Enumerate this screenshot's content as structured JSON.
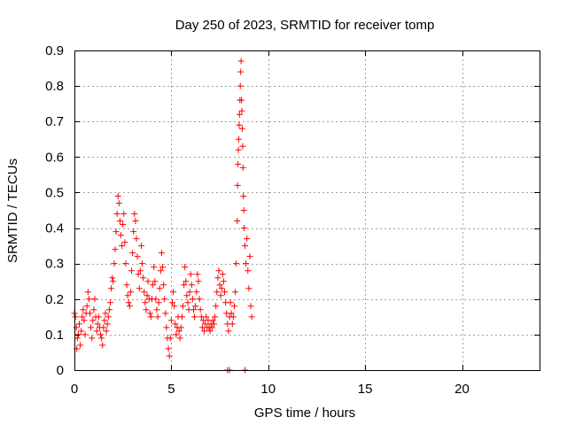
{
  "chart_data": {
    "type": "scatter",
    "title": "Day 250 of 2023, SRMTID for receiver tomp",
    "xlabel": "GPS time / hours",
    "ylabel": "SRMTID / TECUs",
    "xlim": [
      0,
      24
    ],
    "ylim": [
      0,
      0.9
    ],
    "x_ticks": [
      0,
      5,
      10,
      15,
      20
    ],
    "x_tick_labels": [
      "0",
      "5",
      "10",
      "15",
      "20"
    ],
    "y_ticks": [
      0,
      0.1,
      0.2,
      0.3,
      0.4,
      0.5,
      0.6,
      0.7,
      0.8,
      0.9
    ],
    "y_tick_labels": [
      "0",
      "0.1",
      "0.2",
      "0.3",
      "0.4",
      "0.5",
      "0.6",
      "0.7",
      "0.8",
      "0.9"
    ],
    "grid": true,
    "marker": "+",
    "color": "#ff0000",
    "series": [
      {
        "name": "SRMTID",
        "points": [
          [
            0.0,
            0.16
          ],
          [
            0.05,
            0.15
          ],
          [
            0.1,
            0.12
          ],
          [
            0.12,
            0.06
          ],
          [
            0.15,
            0.09
          ],
          [
            0.2,
            0.1
          ],
          [
            0.25,
            0.13
          ],
          [
            0.3,
            0.07
          ],
          [
            0.35,
            0.11
          ],
          [
            0.4,
            0.15
          ],
          [
            0.45,
            0.17
          ],
          [
            0.5,
            0.14
          ],
          [
            0.55,
            0.1
          ],
          [
            0.6,
            0.16
          ],
          [
            0.65,
            0.18
          ],
          [
            0.7,
            0.22
          ],
          [
            0.75,
            0.2
          ],
          [
            0.8,
            0.16
          ],
          [
            0.85,
            0.12
          ],
          [
            0.9,
            0.09
          ],
          [
            0.95,
            0.14
          ],
          [
            1.0,
            0.17
          ],
          [
            1.05,
            0.2
          ],
          [
            1.1,
            0.15
          ],
          [
            1.15,
            0.11
          ],
          [
            1.2,
            0.13
          ],
          [
            1.25,
            0.15
          ],
          [
            1.3,
            0.12
          ],
          [
            1.35,
            0.1
          ],
          [
            1.4,
            0.09
          ],
          [
            1.45,
            0.07
          ],
          [
            1.5,
            0.12
          ],
          [
            1.55,
            0.14
          ],
          [
            1.6,
            0.16
          ],
          [
            1.65,
            0.11
          ],
          [
            1.7,
            0.13
          ],
          [
            1.75,
            0.15
          ],
          [
            1.8,
            0.17
          ],
          [
            1.85,
            0.19
          ],
          [
            1.9,
            0.23
          ],
          [
            1.95,
            0.26
          ],
          [
            2.0,
            0.25
          ],
          [
            2.05,
            0.3
          ],
          [
            2.1,
            0.34
          ],
          [
            2.15,
            0.39
          ],
          [
            2.2,
            0.44
          ],
          [
            2.25,
            0.49
          ],
          [
            2.3,
            0.47
          ],
          [
            2.35,
            0.42
          ],
          [
            2.4,
            0.38
          ],
          [
            2.45,
            0.35
          ],
          [
            2.5,
            0.41
          ],
          [
            2.55,
            0.44
          ],
          [
            2.6,
            0.36
          ],
          [
            2.65,
            0.3
          ],
          [
            2.7,
            0.24
          ],
          [
            2.75,
            0.21
          ],
          [
            2.8,
            0.19
          ],
          [
            2.85,
            0.18
          ],
          [
            2.9,
            0.22
          ],
          [
            2.95,
            0.28
          ],
          [
            3.0,
            0.33
          ],
          [
            3.05,
            0.39
          ],
          [
            3.1,
            0.44
          ],
          [
            3.15,
            0.42
          ],
          [
            3.2,
            0.37
          ],
          [
            3.25,
            0.32
          ],
          [
            3.3,
            0.27
          ],
          [
            3.35,
            0.23
          ],
          [
            3.4,
            0.28
          ],
          [
            3.45,
            0.35
          ],
          [
            3.5,
            0.3
          ],
          [
            3.55,
            0.26
          ],
          [
            3.6,
            0.22
          ],
          [
            3.65,
            0.19
          ],
          [
            3.7,
            0.17
          ],
          [
            3.75,
            0.21
          ],
          [
            3.8,
            0.25
          ],
          [
            3.85,
            0.2
          ],
          [
            3.9,
            0.16
          ],
          [
            3.95,
            0.15
          ],
          [
            4.0,
            0.2
          ],
          [
            4.05,
            0.24
          ],
          [
            4.1,
            0.29
          ],
          [
            4.15,
            0.25
          ],
          [
            4.2,
            0.2
          ],
          [
            4.25,
            0.17
          ],
          [
            4.3,
            0.15
          ],
          [
            4.35,
            0.19
          ],
          [
            4.4,
            0.23
          ],
          [
            4.45,
            0.28
          ],
          [
            4.5,
            0.33
          ],
          [
            4.55,
            0.29
          ],
          [
            4.6,
            0.24
          ],
          [
            4.65,
            0.2
          ],
          [
            4.7,
            0.16
          ],
          [
            4.75,
            0.12
          ],
          [
            4.8,
            0.09
          ],
          [
            4.85,
            0.06
          ],
          [
            4.9,
            0.04
          ],
          [
            4.95,
            0.09
          ],
          [
            5.0,
            0.14
          ],
          [
            5.05,
            0.19
          ],
          [
            5.1,
            0.22
          ],
          [
            5.15,
            0.18
          ],
          [
            5.2,
            0.13
          ],
          [
            5.25,
            0.1
          ],
          [
            5.3,
            0.12
          ],
          [
            5.35,
            0.15
          ],
          [
            5.4,
            0.11
          ],
          [
            5.45,
            0.09
          ],
          [
            5.5,
            0.12
          ],
          [
            5.55,
            0.15
          ],
          [
            5.6,
            0.18
          ],
          [
            5.65,
            0.24
          ],
          [
            5.7,
            0.29
          ],
          [
            5.75,
            0.25
          ],
          [
            5.8,
            0.21
          ],
          [
            5.85,
            0.19
          ],
          [
            5.9,
            0.17
          ],
          [
            5.95,
            0.22
          ],
          [
            6.0,
            0.27
          ],
          [
            6.05,
            0.24
          ],
          [
            6.1,
            0.2
          ],
          [
            6.15,
            0.17
          ],
          [
            6.2,
            0.15
          ],
          [
            6.25,
            0.18
          ],
          [
            6.3,
            0.22
          ],
          [
            6.35,
            0.27
          ],
          [
            6.4,
            0.25
          ],
          [
            6.45,
            0.2
          ],
          [
            6.5,
            0.17
          ],
          [
            6.55,
            0.15
          ],
          [
            6.6,
            0.12
          ],
          [
            6.65,
            0.14
          ],
          [
            6.7,
            0.11
          ],
          [
            6.75,
            0.13
          ],
          [
            6.8,
            0.15
          ],
          [
            6.85,
            0.12
          ],
          [
            6.9,
            0.14
          ],
          [
            6.95,
            0.12
          ],
          [
            7.0,
            0.11
          ],
          [
            7.05,
            0.13
          ],
          [
            7.1,
            0.12
          ],
          [
            7.15,
            0.14
          ],
          [
            7.2,
            0.13
          ],
          [
            7.25,
            0.15
          ],
          [
            7.3,
            0.18
          ],
          [
            7.35,
            0.22
          ],
          [
            7.4,
            0.26
          ],
          [
            7.45,
            0.28
          ],
          [
            7.5,
            0.24
          ],
          [
            7.55,
            0.21
          ],
          [
            7.6,
            0.23
          ],
          [
            7.65,
            0.27
          ],
          [
            7.7,
            0.25
          ],
          [
            7.75,
            0.22
          ],
          [
            7.8,
            0.19
          ],
          [
            7.85,
            0.16
          ],
          [
            7.9,
            0.13
          ],
          [
            7.95,
            0.11
          ],
          [
            8.0,
            0.15
          ],
          [
            8.05,
            0.19
          ],
          [
            8.1,
            0.16
          ],
          [
            8.15,
            0.13
          ],
          [
            8.2,
            0.15
          ],
          [
            8.25,
            0.18
          ],
          [
            8.3,
            0.22
          ],
          [
            8.35,
            0.3
          ],
          [
            8.4,
            0.42
          ],
          [
            8.42,
            0.52
          ],
          [
            8.44,
            0.58
          ],
          [
            8.46,
            0.62
          ],
          [
            8.48,
            0.65
          ],
          [
            8.5,
            0.69
          ],
          [
            8.52,
            0.72
          ],
          [
            8.54,
            0.76
          ],
          [
            8.56,
            0.8
          ],
          [
            8.58,
            0.84
          ],
          [
            8.6,
            0.87
          ],
          [
            8.62,
            0.76
          ],
          [
            8.64,
            0.73
          ],
          [
            8.66,
            0.68
          ],
          [
            8.68,
            0.63
          ],
          [
            8.7,
            0.57
          ],
          [
            8.72,
            0.49
          ],
          [
            8.74,
            0.45
          ],
          [
            8.76,
            0.4
          ],
          [
            8.8,
            0.35
          ],
          [
            8.85,
            0.3
          ],
          [
            8.9,
            0.37
          ],
          [
            8.95,
            0.28
          ],
          [
            9.0,
            0.23
          ],
          [
            9.05,
            0.32
          ],
          [
            9.1,
            0.18
          ],
          [
            9.15,
            0.15
          ],
          [
            7.9,
            0.0
          ],
          [
            8.0,
            0.0
          ],
          [
            8.8,
            0.0
          ]
        ]
      }
    ]
  }
}
